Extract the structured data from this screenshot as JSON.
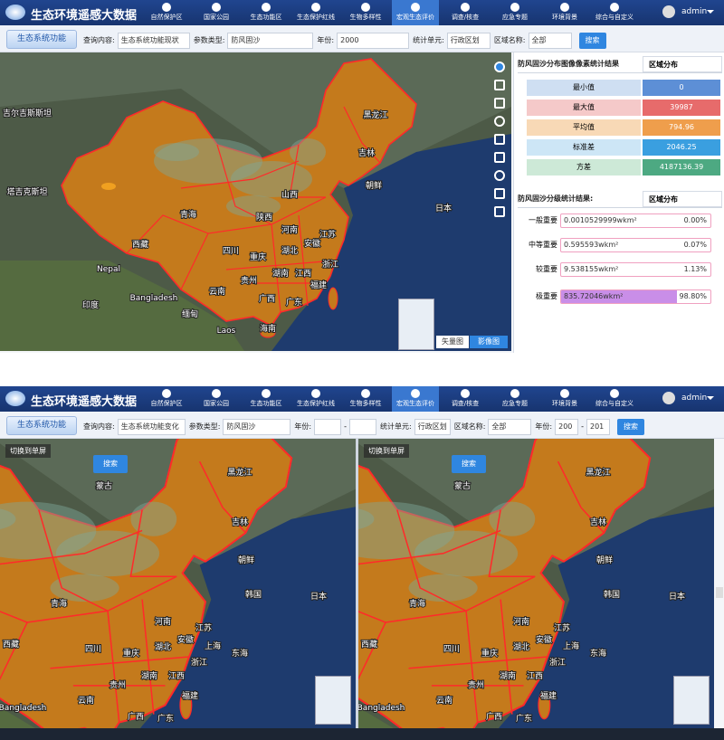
{
  "screens": [
    {
      "nav": {
        "title": "生态环境遥感大数据",
        "items": [
          "自然保护区",
          "国家公园",
          "生态功能区",
          "生态保护红线",
          "生物多样性",
          "宏观生态评价",
          "调查/核查",
          "应急专题",
          "环境背景",
          "综合与自定义"
        ],
        "user": "admin"
      },
      "filter": {
        "tab": "生态系统功能",
        "fields": [
          {
            "label": "查询内容:",
            "value": "生态系统功能现状"
          },
          {
            "label": "参数类型:",
            "value": "防风固沙"
          },
          {
            "label": "年份:",
            "value": "2000"
          },
          {
            "label": "统计单元:",
            "value": "行政区划"
          },
          {
            "label": "区域名称:",
            "value": "全部"
          }
        ],
        "search": "搜索"
      },
      "maps": [
        {
          "labels": [
            "黑龙江",
            "吉林",
            "朝鲜",
            "日本",
            "青海",
            "西藏",
            "四川",
            "重庆",
            "陕西",
            "山西",
            "河南",
            "江苏",
            "安徽",
            "湖北",
            "浙江",
            "湖南",
            "江西",
            "贵州",
            "福建",
            "云南",
            "广西",
            "广东",
            "海南",
            "Bangladesh",
            "印度",
            "缅甸",
            "Laos",
            "吉尔吉斯斯坦",
            "塔吉克斯坦",
            "Nepal"
          ],
          "layers": [
            "矢量图",
            "影像图"
          ]
        }
      ],
      "panel": {
        "stats": {
          "title": "防风固沙分布图像像素统计结果",
          "tab": "区域分布",
          "rows": [
            {
              "label": "最小值",
              "value": 0
            },
            {
              "label": "最大值",
              "value": 39987
            },
            {
              "label": "平均值",
              "value": 794.96
            },
            {
              "label": "标准差",
              "value": 2046.25
            },
            {
              "label": "方差",
              "value": 4187136.39
            }
          ]
        },
        "grades": {
          "title": "防风固沙分级统计结果:",
          "tab": "区域分布",
          "rows": [
            {
              "label": "一般重要",
              "area": "0.0010529999wkm²",
              "percent": "0.00%"
            },
            {
              "label": "中等重要",
              "area": "0.595593wkm²",
              "percent": "0.07%"
            },
            {
              "label": "较重要",
              "area": "9.538155wkm²",
              "percent": "1.13%"
            },
            {
              "label": "极重要",
              "area": "835.72046wkm²",
              "percent": "98.80%"
            }
          ]
        }
      }
    },
    {
      "nav": {
        "title": "生态环境遥感大数据",
        "items": [
          "自然保护区",
          "国家公园",
          "生态功能区",
          "生态保护红线",
          "生物多样性",
          "宏观生态评价",
          "调查/核查",
          "应急专题",
          "环境背景",
          "综合与自定义"
        ],
        "user": "admin"
      },
      "filter": {
        "tab": "生态系统功能",
        "fields": [
          {
            "label": "查询内容:",
            "value": "生态系统功能变化"
          },
          {
            "label": "参数类型:",
            "value": "防风固沙"
          },
          {
            "label": "年份:",
            "range": "-"
          },
          {
            "label": "统计单元:",
            "value": "行政区划"
          },
          {
            "label": "区域名称:",
            "value": "全部"
          },
          {
            "label": "年份:",
            "values": [
              "200",
              "201"
            ],
            "range": "-"
          }
        ],
        "search": "搜索"
      },
      "maps": [
        {
          "switch": "切换到单屏",
          "search": "搜索",
          "labels": [
            "蒙古",
            "黑龙江",
            "吉林",
            "朝鲜",
            "韩国",
            "日本",
            "青海",
            "西藏",
            "河南",
            "四川",
            "重庆",
            "湖北",
            "安徽",
            "江苏",
            "上海",
            "浙江",
            "东海",
            "湖南",
            "江西",
            "贵州",
            "福建",
            "云南",
            "广西",
            "广东",
            "Bangladesh"
          ]
        },
        {
          "switch": "切换到单屏",
          "search": "搜索",
          "labels": [
            "蒙古",
            "黑龙江",
            "吉林",
            "朝鲜",
            "韩国",
            "日本",
            "青海",
            "西藏",
            "河南",
            "四川",
            "重庆",
            "湖北",
            "安徽",
            "江苏",
            "上海",
            "浙江",
            "东海",
            "湖南",
            "江西",
            "贵州",
            "福建",
            "云南",
            "广西",
            "广东",
            "Bangladesh"
          ]
        }
      ]
    }
  ]
}
